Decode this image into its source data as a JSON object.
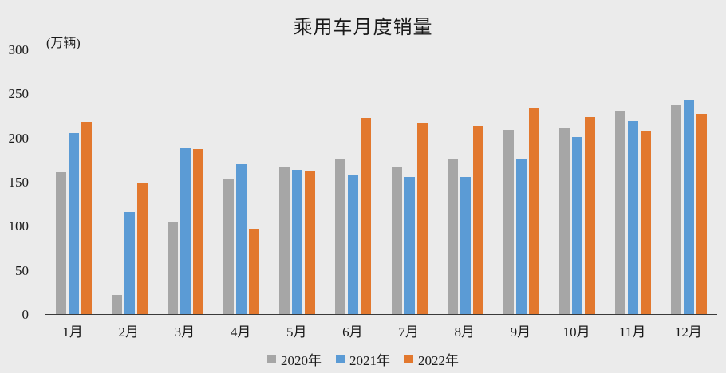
{
  "title": "乘用车月度销量",
  "unit_label": "(万辆)",
  "colors": {
    "background": "#ebebeb",
    "axis": "#3a3a3a",
    "series_2020": "#a6a6a6",
    "series_2021": "#5b9bd5",
    "series_2022": "#e2782e"
  },
  "chart_data": {
    "type": "bar",
    "title": "乘用车月度销量",
    "ylabel": "(万辆)",
    "xlabel": "",
    "categories": [
      "1月",
      "2月",
      "3月",
      "4月",
      "5月",
      "6月",
      "7月",
      "8月",
      "9月",
      "10月",
      "11月",
      "12月"
    ],
    "series": [
      {
        "name": "2020年",
        "color": "#a6a6a6",
        "values": [
          161,
          22,
          105,
          153,
          167,
          176,
          166,
          175,
          209,
          211,
          230,
          237
        ]
      },
      {
        "name": "2021年",
        "color": "#5b9bd5",
        "values": [
          205,
          116,
          188,
          170,
          164,
          157,
          155,
          155,
          175,
          201,
          219,
          243
        ]
      },
      {
        "name": "2022年",
        "color": "#e2782e",
        "values": [
          218,
          149,
          187,
          97,
          162,
          222,
          217,
          213,
          234,
          223,
          208,
          227
        ]
      }
    ],
    "ylim": [
      0,
      300
    ],
    "yticks": [
      0,
      50,
      100,
      150,
      200,
      250,
      300
    ],
    "grid": false,
    "legend_position": "bottom"
  }
}
